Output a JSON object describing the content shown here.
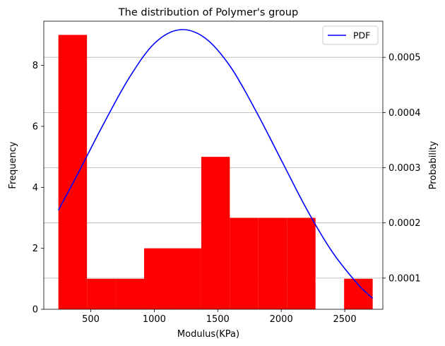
{
  "chart_data": {
    "type": "bar",
    "title": "The distribution of Polymer's group",
    "xlabel": "Modulus(KPa)",
    "ylabel": "Frequency",
    "y2label": "Probability",
    "xlim": [
      130,
      2800
    ],
    "ylim": [
      0,
      9.45
    ],
    "y2lim": [
      4.35e-05,
      0.0005655
    ],
    "xticks": [
      500,
      1000,
      1500,
      2000,
      2500
    ],
    "xtick_labels": [
      "500",
      "1000",
      "1500",
      "2000",
      "2500"
    ],
    "yticks": [
      0,
      2,
      4,
      6,
      8
    ],
    "ytick_labels": [
      "0",
      "2",
      "4",
      "6",
      "8"
    ],
    "y2ticks": [
      0.0001,
      0.0002,
      0.0003,
      0.0004,
      0.0005
    ],
    "y2tick_labels": [
      "0.0001",
      "0.0002",
      "0.0003",
      "0.0004",
      "0.0005"
    ],
    "grid": "y2-major",
    "bar_color": "#ff0000",
    "line_color": "#0000ff",
    "histogram": {
      "bin_edges": [
        245,
        470,
        695,
        920,
        1145,
        1370,
        1595,
        1820,
        2045,
        2270,
        2495,
        2720
      ],
      "counts": [
        9,
        1,
        1,
        2,
        2,
        5,
        3,
        3,
        3,
        0,
        1
      ]
    },
    "series": [
      {
        "name": "PDF",
        "type": "line",
        "axis": "y2",
        "x": [
          245,
          400,
          600,
          800,
          1000,
          1200,
          1400,
          1600,
          1800,
          2000,
          2200,
          2400,
          2600,
          2720
        ],
        "y": [
          0.000223,
          0.00029,
          0.000379,
          0.000462,
          0.000525,
          0.00055,
          0.000535,
          0.000483,
          0.000403,
          0.000314,
          0.000225,
          0.000148,
          8.98e-05,
          6.33e-05
        ]
      }
    ],
    "legend": {
      "position": "top-right",
      "entries": [
        "PDF"
      ]
    }
  }
}
